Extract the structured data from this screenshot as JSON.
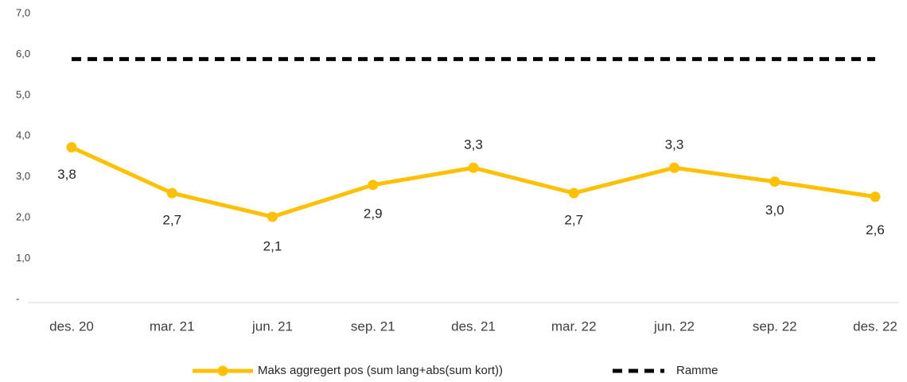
{
  "chart_data": {
    "type": "line",
    "categories": [
      "des. 20",
      "mar. 21",
      "jun. 21",
      "sep. 21",
      "des. 21",
      "mar. 22",
      "jun. 22",
      "sep. 22",
      "des. 22"
    ],
    "series": [
      {
        "name": "Maks aggregert pos (sum lang+abs(sum kort))",
        "color": "#FFC000",
        "values": [
          3.84,
          2.72,
          2.14,
          2.92,
          3.34,
          2.72,
          3.34,
          3.0,
          2.63
        ],
        "value_labels": [
          "3,8",
          "2,7",
          "2,1",
          "2,9",
          "3,3",
          "2,7",
          "3,3",
          "3,0",
          "2,6"
        ]
      },
      {
        "name": "Ramme",
        "color": "#000000",
        "dashed": true,
        "values": [
          6,
          6,
          6,
          6,
          6,
          6,
          6,
          6,
          6
        ]
      }
    ],
    "ylim": [
      0,
      7
    ],
    "yticks": [
      {
        "value": 0,
        "label": "-"
      },
      {
        "value": 1,
        "label": "1,0"
      },
      {
        "value": 2,
        "label": "2,0"
      },
      {
        "value": 3,
        "label": "3,0"
      },
      {
        "value": 4,
        "label": "4,0"
      },
      {
        "value": 5,
        "label": "5,0"
      },
      {
        "value": 6,
        "label": "6,0"
      },
      {
        "value": 7,
        "label": "7,0"
      }
    ],
    "legend": "bottom"
  }
}
